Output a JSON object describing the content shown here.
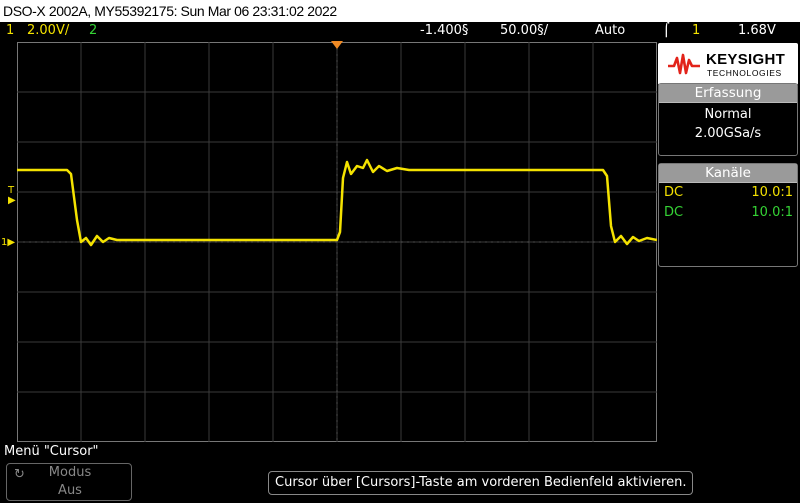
{
  "window": {
    "title": "DSO-X 2002A, MY55392175: Sun Mar 06 23:31:02 2022"
  },
  "status_bar": {
    "ch1_number": "1",
    "ch1_scale": "2.00V/",
    "ch2_number": "2",
    "time_delay": "-1.400§",
    "time_scale": "50.00§/",
    "trigger_mode": "Auto",
    "trigger_source": "1",
    "trigger_level": "1.68V"
  },
  "screen": {
    "trigger_marker": "T",
    "ground_marker": "1",
    "waveform_color": "#f4e200",
    "grid_color": "#3a3a3a"
  },
  "logo": {
    "brand": "KEYSIGHT",
    "subtitle": "TECHNOLOGIES",
    "accent": "#e2231a"
  },
  "acquisition": {
    "header": "Erfassung",
    "mode": "Normal",
    "sample_rate": "2.00GSa/s"
  },
  "channels": {
    "header": "Kanäle",
    "rows": [
      {
        "coupling": "DC",
        "probe": "10.0:1",
        "color": "#f4e200"
      },
      {
        "coupling": "DC",
        "probe": "10.0:1",
        "color": "#35d335"
      }
    ]
  },
  "menu": {
    "label": "Menü \"Cursor\"",
    "softkey_title": "Modus",
    "softkey_value": "Aus"
  },
  "hint": "Cursor über [Cursors]-Taste am vorderen Bedienfeld aktivieren."
}
